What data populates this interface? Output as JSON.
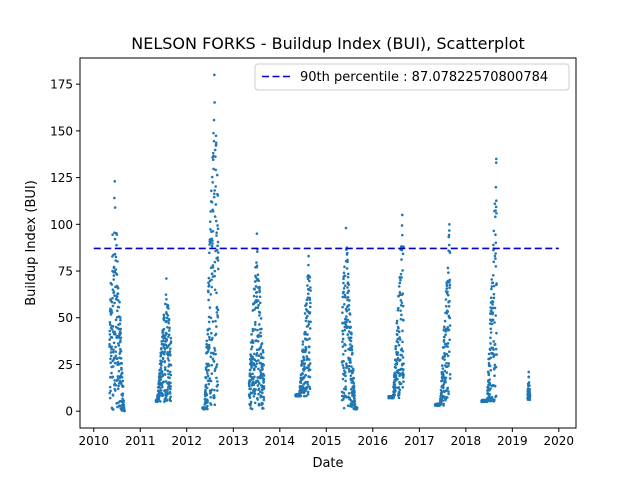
{
  "chart_data": {
    "type": "scatter",
    "title": "NELSON FORKS - Buildup Index (BUI), Scatterplot",
    "xlabel": "Date",
    "ylabel": "Buildup Index (BUI)",
    "xlim": [
      "2009-09-15",
      "2020-05-15"
    ],
    "ylim": [
      -9,
      189
    ],
    "x_ticks": [
      "2010",
      "2011",
      "2012",
      "2013",
      "2014",
      "2015",
      "2016",
      "2017",
      "2018",
      "2019",
      "2020"
    ],
    "y_ticks": [
      0,
      25,
      50,
      75,
      100,
      125,
      150,
      175
    ],
    "grid": false,
    "legend_position": "top-right",
    "colors": {
      "points": "#1f77b4",
      "percentile_line": "#0000cc"
    },
    "reference_lines": [
      {
        "label": "90th percentile : 87.07822570800784",
        "y": 87.07822570800784,
        "x_start": "2010-01-01",
        "x_end": "2020-01-01",
        "style": "dashed"
      }
    ],
    "series": [
      {
        "marker": "point",
        "season_ranges": [
          {
            "start": "2010-05-05",
            "end": "2010-08-31",
            "min": 0,
            "max": 123,
            "peak_date": "2010-06-15"
          },
          {
            "start": "2011-05-05",
            "end": "2011-08-31",
            "min": 5,
            "max": 71,
            "peak_date": "2011-07-25"
          },
          {
            "start": "2012-05-05",
            "end": "2012-09-05",
            "min": 1,
            "max": 180,
            "peak_date": "2012-08-05"
          },
          {
            "start": "2013-05-05",
            "end": "2013-08-31",
            "min": 1,
            "max": 95,
            "peak_date": "2013-07-05"
          },
          {
            "start": "2014-05-05",
            "end": "2014-08-31",
            "min": 8,
            "max": 83,
            "peak_date": "2014-08-15"
          },
          {
            "start": "2015-05-05",
            "end": "2015-08-31",
            "min": 1,
            "max": 98,
            "peak_date": "2015-06-05"
          },
          {
            "start": "2016-05-05",
            "end": "2016-08-31",
            "min": 7,
            "max": 105,
            "peak_date": "2016-08-20"
          },
          {
            "start": "2017-05-05",
            "end": "2017-08-31",
            "min": 3,
            "max": 100,
            "peak_date": "2017-08-25"
          },
          {
            "start": "2018-05-05",
            "end": "2018-08-31",
            "min": 5,
            "max": 135,
            "peak_date": "2018-08-28"
          },
          {
            "start": "2019-05-01",
            "end": "2019-05-20",
            "min": 6,
            "max": 21,
            "peak_date": "2019-05-10"
          }
        ]
      }
    ]
  }
}
